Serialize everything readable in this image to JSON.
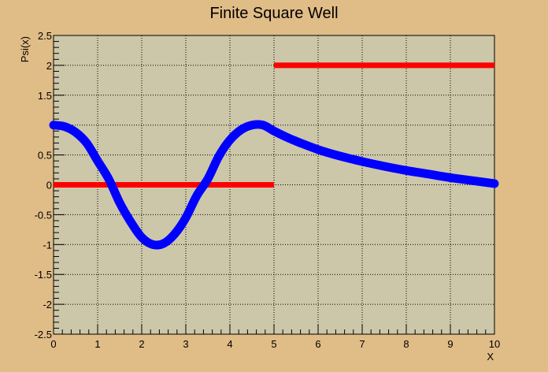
{
  "chart_data": {
    "type": "line",
    "title": "Finite Square Well",
    "xlabel": "X",
    "ylabel": "Psi(x)",
    "xlim": [
      0,
      10
    ],
    "ylim": [
      -2.5,
      2.5
    ],
    "grid": true,
    "x_ticks": [
      0,
      1,
      2,
      3,
      4,
      5,
      6,
      7,
      8,
      9,
      10
    ],
    "x_tick_labels": [
      "0",
      "1",
      "2",
      "3",
      "4",
      "5",
      "6",
      "7",
      "8",
      "9",
      "10"
    ],
    "y_ticks": [
      -2.5,
      -2,
      -1.5,
      -1,
      -0.5,
      0,
      0.5,
      1.5,
      2,
      2.5
    ],
    "y_tick_labels": [
      "-2.5",
      "-2",
      "-1.5",
      "-1",
      "-0.5",
      "0",
      "0.5",
      "1.5",
      "2",
      "2.5"
    ],
    "series": [
      {
        "color": "#0000ff",
        "x": [
          0,
          0.25,
          0.5,
          0.75,
          1.0,
          1.25,
          1.5,
          1.75,
          2.0,
          2.25,
          2.5,
          2.75,
          3.0,
          3.25,
          3.5,
          3.75,
          4.0,
          4.25,
          4.5,
          4.75,
          5.0,
          5.25,
          5.5,
          6.0,
          6.5,
          7.0,
          7.5,
          8.0,
          8.5,
          9.0,
          9.5,
          10.0
        ],
        "y": [
          1.0,
          0.975,
          0.88,
          0.7,
          0.4,
          0.1,
          -0.3,
          -0.62,
          -0.88,
          -1.0,
          -0.98,
          -0.82,
          -0.55,
          -0.18,
          0.1,
          0.48,
          0.75,
          0.92,
          1.0,
          1.0,
          0.9,
          0.81,
          0.73,
          0.59,
          0.48,
          0.39,
          0.31,
          0.24,
          0.18,
          0.12,
          0.07,
          0.02
        ]
      },
      {
        "color": "#ff0000",
        "segments": [
          {
            "x": [
              0,
              5
            ],
            "y": [
              0,
              0
            ]
          },
          {
            "x": [
              5,
              10
            ],
            "y": [
              2,
              2
            ]
          }
        ]
      }
    ],
    "colors": {
      "background": "#e0bc87",
      "plot_area": "#cdc7a9",
      "wavefunction": "#0000ff",
      "potential": "#ff0000"
    }
  }
}
